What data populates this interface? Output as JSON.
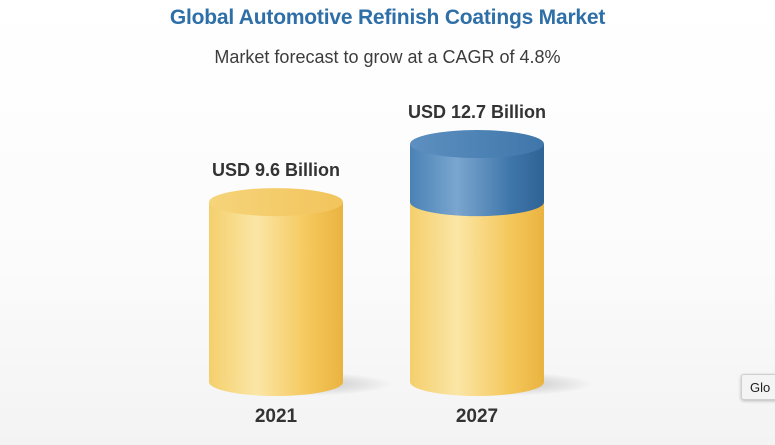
{
  "header": {
    "title": "Global Automotive Refinish Coatings Market",
    "subtitle": "Market forecast to grow at a CAGR of 4.8%"
  },
  "side_tab": {
    "label": "Glo"
  },
  "colors": {
    "title": "#2f6fa7",
    "base_cylinder": "#f2c14e",
    "growth_cylinder": "#3f79ad"
  },
  "chart_data": {
    "type": "bar",
    "style": "3d-cylinder",
    "categories": [
      "2021",
      "2027"
    ],
    "values": [
      9.6,
      12.7
    ],
    "value_labels": [
      "USD 9.6 Billion",
      "USD 12.7 Billion"
    ],
    "series": [
      {
        "values": [
          9.6,
          9.6
        ]
      },
      {
        "values": [
          0,
          3.1
        ]
      }
    ],
    "xlabel": "",
    "ylabel": "",
    "grid": false,
    "legend": "none"
  }
}
